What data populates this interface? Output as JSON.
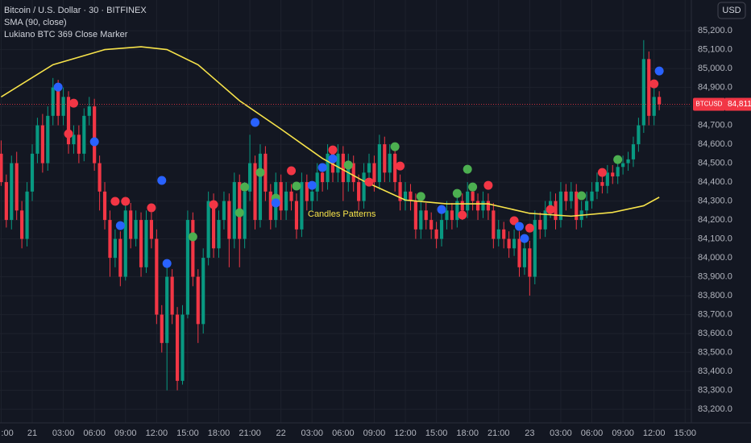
{
  "chart_data": {
    "type": "candlestick",
    "title": "Bitcoin / U.S. Dollar · 30 · BITFINEX",
    "indicators": [
      "SMA (90, close)",
      "Lukiano BTC 369 Close Marker"
    ],
    "currency_button": "USD",
    "annotation": "Candles Patterns",
    "symbol": "BTCUSD",
    "last_price": {
      "value": 84811,
      "label": "84,811.0"
    },
    "up_color": "#089981",
    "down_color": "#f23645",
    "xlim": [
      -0.22,
      133.2
    ],
    "ylim": [
      83128,
      85362
    ],
    "xticks": [
      {
        "value": 0,
        "label": ":00"
      },
      {
        "value": 6,
        "label": "21"
      },
      {
        "value": 12,
        "label": "03:00"
      },
      {
        "value": 18,
        "label": "06:00"
      },
      {
        "value": 24,
        "label": "09:00"
      },
      {
        "value": 30,
        "label": "12:00"
      },
      {
        "value": 36,
        "label": "15:00"
      },
      {
        "value": 42,
        "label": "18:00"
      },
      {
        "value": 48,
        "label": "21:00"
      },
      {
        "value": 54,
        "label": "22"
      },
      {
        "value": 60,
        "label": "03:00"
      },
      {
        "value": 66,
        "label": "06:00"
      },
      {
        "value": 72,
        "label": "09:00"
      },
      {
        "value": 78,
        "label": "12:00"
      },
      {
        "value": 84,
        "label": "15:00"
      },
      {
        "value": 90,
        "label": "18:00"
      },
      {
        "value": 96,
        "label": "21:00"
      },
      {
        "value": 102,
        "label": "23"
      },
      {
        "value": 108,
        "label": "03:00"
      },
      {
        "value": 114,
        "label": "06:00"
      },
      {
        "value": 120,
        "label": "09:00"
      },
      {
        "value": 126,
        "label": "12:00"
      },
      {
        "value": 132,
        "label": "15:00"
      }
    ],
    "yticks": [
      {
        "value": 85200,
        "label": "85,200.0"
      },
      {
        "value": 85100,
        "label": "85,100.0"
      },
      {
        "value": 85000,
        "label": "85,000.0"
      },
      {
        "value": 84900,
        "label": "84,900.0"
      },
      {
        "value": 84800,
        "label": "84,800.0"
      },
      {
        "value": 84700,
        "label": "84,700.0"
      },
      {
        "value": 84600,
        "label": "84,600.0"
      },
      {
        "value": 84500,
        "label": "84,500.0"
      },
      {
        "value": 84400,
        "label": "84,400.0"
      },
      {
        "value": 84300,
        "label": "84,300.0"
      },
      {
        "value": 84200,
        "label": "84,200.0"
      },
      {
        "value": 84100,
        "label": "84,100.0"
      },
      {
        "value": 84000,
        "label": "84,000.0"
      },
      {
        "value": 83900,
        "label": "83,900.0"
      },
      {
        "value": 83800,
        "label": "83,800.0"
      },
      {
        "value": 83700,
        "label": "83,700.0"
      },
      {
        "value": 83600,
        "label": "83,600.0"
      },
      {
        "value": 83500,
        "label": "83,500.0"
      },
      {
        "value": 83400,
        "label": "83,400.0"
      },
      {
        "value": 83300,
        "label": "83,300.0"
      },
      {
        "value": 83200,
        "label": "83,200.0"
      }
    ],
    "grid": true,
    "candles": [
      [
        84550,
        84620,
        84380,
        84400
      ],
      [
        84400,
        84440,
        84160,
        84200
      ],
      [
        84200,
        84540,
        84150,
        84500
      ],
      [
        84500,
        84560,
        84200,
        84250
      ],
      [
        84250,
        84300,
        84050,
        84100
      ],
      [
        84100,
        84400,
        84060,
        84350
      ],
      [
        84350,
        84600,
        84300,
        84550
      ],
      [
        84550,
        84740,
        84500,
        84700
      ],
      [
        84700,
        84760,
        84450,
        84500
      ],
      [
        84500,
        84800,
        84460,
        84750
      ],
      [
        84750,
        84950,
        84700,
        84900
      ],
      [
        84900,
        84940,
        84700,
        84750
      ],
      [
        84750,
        84900,
        84700,
        84850
      ],
      [
        84850,
        84880,
        84550,
        84600
      ],
      [
        84600,
        84700,
        84550,
        84650
      ],
      [
        84650,
        84700,
        84500,
        84550
      ],
      [
        84550,
        84790,
        84510,
        84750
      ],
      [
        84750,
        84850,
        84700,
        84800
      ],
      [
        84800,
        84840,
        84460,
        84500
      ],
      [
        84500,
        84540,
        84250,
        84350
      ],
      [
        84350,
        84400,
        84150,
        84200
      ],
      [
        84200,
        84250,
        83900,
        84000
      ],
      [
        84000,
        84150,
        83950,
        84100
      ],
      [
        84100,
        84140,
        83850,
        83900
      ],
      [
        83900,
        84300,
        83880,
        84250
      ],
      [
        84250,
        84290,
        84050,
        84100
      ],
      [
        84100,
        84250,
        84060,
        84200
      ],
      [
        84200,
        84240,
        83900,
        83950
      ],
      [
        83950,
        84250,
        83920,
        84200
      ],
      [
        84200,
        84240,
        84050,
        84100
      ],
      [
        84100,
        84150,
        83650,
        83700
      ],
      [
        83700,
        83750,
        83500,
        83550
      ],
      [
        83550,
        83950,
        83300,
        83900
      ],
      [
        83900,
        83940,
        83650,
        83700
      ],
      [
        83700,
        83740,
        83300,
        83350
      ],
      [
        83350,
        83750,
        83330,
        83700
      ],
      [
        83700,
        84250,
        83680,
        84200
      ],
      [
        84200,
        84240,
        83850,
        83900
      ],
      [
        83900,
        83940,
        83550,
        83650
      ],
      [
        83650,
        84050,
        83600,
        84000
      ],
      [
        84000,
        84350,
        83960,
        84300
      ],
      [
        84300,
        84340,
        84000,
        84050
      ],
      [
        84050,
        84250,
        84000,
        84200
      ],
      [
        84200,
        84350,
        84150,
        84300
      ],
      [
        84300,
        84340,
        83950,
        84100
      ],
      [
        84100,
        84450,
        84050,
        84400
      ],
      [
        84400,
        84440,
        83950,
        84100
      ],
      [
        84100,
        84400,
        84050,
        84350
      ],
      [
        84350,
        84650,
        84300,
        84500
      ],
      [
        84500,
        84540,
        84150,
        84200
      ],
      [
        84200,
        84600,
        84160,
        84550
      ],
      [
        84550,
        84590,
        84300,
        84350
      ],
      [
        84350,
        84390,
        84150,
        84200
      ],
      [
        84200,
        84450,
        84160,
        84400
      ],
      [
        84400,
        84440,
        84200,
        84250
      ],
      [
        84250,
        84400,
        84200,
        84350
      ],
      [
        84350,
        84390,
        84250,
        84300
      ],
      [
        84300,
        84340,
        84100,
        84150
      ],
      [
        84150,
        84450,
        84110,
        84400
      ],
      [
        84400,
        84440,
        84250,
        84300
      ],
      [
        84300,
        84400,
        84250,
        84350
      ],
      [
        84350,
        84500,
        84300,
        84450
      ],
      [
        84450,
        84490,
        84350,
        84400
      ],
      [
        84400,
        84600,
        84360,
        84550
      ],
      [
        84550,
        84590,
        84400,
        84450
      ],
      [
        84450,
        84600,
        84400,
        84550
      ],
      [
        84550,
        84590,
        84300,
        84400
      ],
      [
        84400,
        84550,
        84350,
        84500
      ],
      [
        84500,
        84540,
        84350,
        84400
      ],
      [
        84400,
        84440,
        84250,
        84300
      ],
      [
        84300,
        84500,
        84260,
        84450
      ],
      [
        84450,
        84550,
        84400,
        84500
      ],
      [
        84500,
        84540,
        84350,
        84400
      ],
      [
        84400,
        84650,
        84360,
        84600
      ],
      [
        84600,
        84640,
        84400,
        84450
      ],
      [
        84450,
        84600,
        84400,
        84550
      ],
      [
        84550,
        84590,
        84350,
        84400
      ],
      [
        84400,
        84440,
        84250,
        84300
      ],
      [
        84300,
        84400,
        84250,
        84350
      ],
      [
        84350,
        84390,
        84250,
        84300
      ],
      [
        84300,
        84340,
        84100,
        84150
      ],
      [
        84150,
        84300,
        84100,
        84250
      ],
      [
        84250,
        84290,
        84150,
        84200
      ],
      [
        84200,
        84240,
        84100,
        84150
      ],
      [
        84150,
        84190,
        84050,
        84100
      ],
      [
        84100,
        84250,
        84060,
        84200
      ],
      [
        84200,
        84300,
        84150,
        84250
      ],
      [
        84250,
        84290,
        84150,
        84200
      ],
      [
        84200,
        84350,
        84160,
        84300
      ],
      [
        84300,
        84340,
        84200,
        84250
      ],
      [
        84250,
        84400,
        84210,
        84350
      ],
      [
        84350,
        84390,
        84250,
        84300
      ],
      [
        84300,
        84340,
        84200,
        84250
      ],
      [
        84250,
        84350,
        84210,
        84300
      ],
      [
        84300,
        84340,
        84200,
        84250
      ],
      [
        84250,
        84290,
        84050,
        84100
      ],
      [
        84100,
        84200,
        84060,
        84150
      ],
      [
        84150,
        84190,
        84050,
        84100
      ],
      [
        84100,
        84140,
        84000,
        84050
      ],
      [
        84050,
        84150,
        84010,
        84100
      ],
      [
        84100,
        84140,
        83900,
        83950
      ],
      [
        83950,
        84100,
        83910,
        84050
      ],
      [
        84050,
        84090,
        83800,
        83900
      ],
      [
        83900,
        84250,
        83860,
        84200
      ],
      [
        84200,
        84240,
        84100,
        84150
      ],
      [
        84150,
        84300,
        84110,
        84250
      ],
      [
        84250,
        84350,
        84210,
        84300
      ],
      [
        84300,
        84340,
        84150,
        84200
      ],
      [
        84200,
        84400,
        84160,
        84350
      ],
      [
        84350,
        84390,
        84250,
        84300
      ],
      [
        84300,
        84400,
        84260,
        84350
      ],
      [
        84350,
        84390,
        84150,
        84200
      ],
      [
        84200,
        84300,
        84160,
        84250
      ],
      [
        84250,
        84350,
        84210,
        84300
      ],
      [
        84300,
        84400,
        84260,
        84350
      ],
      [
        84350,
        84450,
        84310,
        84400
      ],
      [
        84400,
        84440,
        84340,
        84380
      ],
      [
        84380,
        84490,
        84340,
        84450
      ],
      [
        84450,
        84490,
        84390,
        84430
      ],
      [
        84430,
        84520,
        84390,
        84480
      ],
      [
        84480,
        84540,
        84440,
        84500
      ],
      [
        84500,
        84560,
        84460,
        84520
      ],
      [
        84520,
        84640,
        84480,
        84600
      ],
      [
        84600,
        84740,
        84560,
        84700
      ],
      [
        84700,
        85150,
        84660,
        85050
      ],
      [
        85050,
        85090,
        84700,
        84750
      ],
      [
        84750,
        84900,
        84700,
        84850
      ],
      [
        84850,
        84880,
        84780,
        84811
      ]
    ],
    "series": [
      {
        "name": "SMA (90, close)",
        "color": "#f7e34a",
        "x": [
          0,
          10,
          20,
          27,
          32,
          38,
          46,
          54,
          62,
          70,
          78,
          86,
          94,
          102,
          110,
          118,
          124,
          127
        ],
        "values": [
          84850,
          85020,
          85100,
          85115,
          85100,
          85020,
          84830,
          84680,
          84525,
          84405,
          84305,
          84285,
          84285,
          84235,
          84220,
          84240,
          84275,
          84320
        ]
      }
    ],
    "markers": [
      {
        "x": 11,
        "y": 84902,
        "color": "#2962ff"
      },
      {
        "x": 14,
        "y": 84817,
        "color": "#f23645"
      },
      {
        "x": 13,
        "y": 84655,
        "color": "#f23645"
      },
      {
        "x": 18,
        "y": 84613,
        "color": "#2962ff"
      },
      {
        "x": 22,
        "y": 84298,
        "color": "#f23645"
      },
      {
        "x": 24,
        "y": 84298,
        "color": "#f23645"
      },
      {
        "x": 23,
        "y": 84170,
        "color": "#2962ff"
      },
      {
        "x": 29,
        "y": 84264,
        "color": "#f23645"
      },
      {
        "x": 31,
        "y": 84409,
        "color": "#2962ff"
      },
      {
        "x": 32,
        "y": 83970,
        "color": "#2962ff"
      },
      {
        "x": 37,
        "y": 84111,
        "color": "#4caf50"
      },
      {
        "x": 41,
        "y": 84281,
        "color": "#f23645"
      },
      {
        "x": 46,
        "y": 84238,
        "color": "#4caf50"
      },
      {
        "x": 47,
        "y": 84374,
        "color": "#4caf50"
      },
      {
        "x": 49,
        "y": 84715,
        "color": "#2962ff"
      },
      {
        "x": 50,
        "y": 84451,
        "color": "#4caf50"
      },
      {
        "x": 53,
        "y": 84315,
        "color": "#4caf50"
      },
      {
        "x": 53,
        "y": 84290,
        "color": "#2962ff"
      },
      {
        "x": 56,
        "y": 84460,
        "color": "#f23645"
      },
      {
        "x": 57,
        "y": 84379,
        "color": "#4caf50"
      },
      {
        "x": 60,
        "y": 84383,
        "color": "#2962ff"
      },
      {
        "x": 62,
        "y": 84477,
        "color": "#2962ff"
      },
      {
        "x": 64,
        "y": 84570,
        "color": "#f23645"
      },
      {
        "x": 64,
        "y": 84523,
        "color": "#2962ff"
      },
      {
        "x": 67,
        "y": 84490,
        "color": "#4caf50"
      },
      {
        "x": 71,
        "y": 84400,
        "color": "#f23645"
      },
      {
        "x": 76,
        "y": 84587,
        "color": "#4caf50"
      },
      {
        "x": 77,
        "y": 84485,
        "color": "#f23645"
      },
      {
        "x": 81,
        "y": 84324,
        "color": "#4caf50"
      },
      {
        "x": 85,
        "y": 84255,
        "color": "#2962ff"
      },
      {
        "x": 88,
        "y": 84340,
        "color": "#4caf50"
      },
      {
        "x": 89,
        "y": 84226,
        "color": "#f23645"
      },
      {
        "x": 90,
        "y": 84468,
        "color": "#4caf50"
      },
      {
        "x": 91,
        "y": 84374,
        "color": "#4caf50"
      },
      {
        "x": 94,
        "y": 84383,
        "color": "#f23645"
      },
      {
        "x": 99,
        "y": 84196,
        "color": "#f23645"
      },
      {
        "x": 100,
        "y": 84166,
        "color": "#2962ff"
      },
      {
        "x": 101,
        "y": 84102,
        "color": "#2962ff"
      },
      {
        "x": 102,
        "y": 84157,
        "color": "#f23645"
      },
      {
        "x": 106,
        "y": 84255,
        "color": "#f23645"
      },
      {
        "x": 112,
        "y": 84328,
        "color": "#4caf50"
      },
      {
        "x": 116,
        "y": 84451,
        "color": "#f23645"
      },
      {
        "x": 119,
        "y": 84519,
        "color": "#4caf50"
      },
      {
        "x": 126,
        "y": 84919,
        "color": "#f23645"
      },
      {
        "x": 127,
        "y": 84987,
        "color": "#2962ff"
      }
    ]
  }
}
